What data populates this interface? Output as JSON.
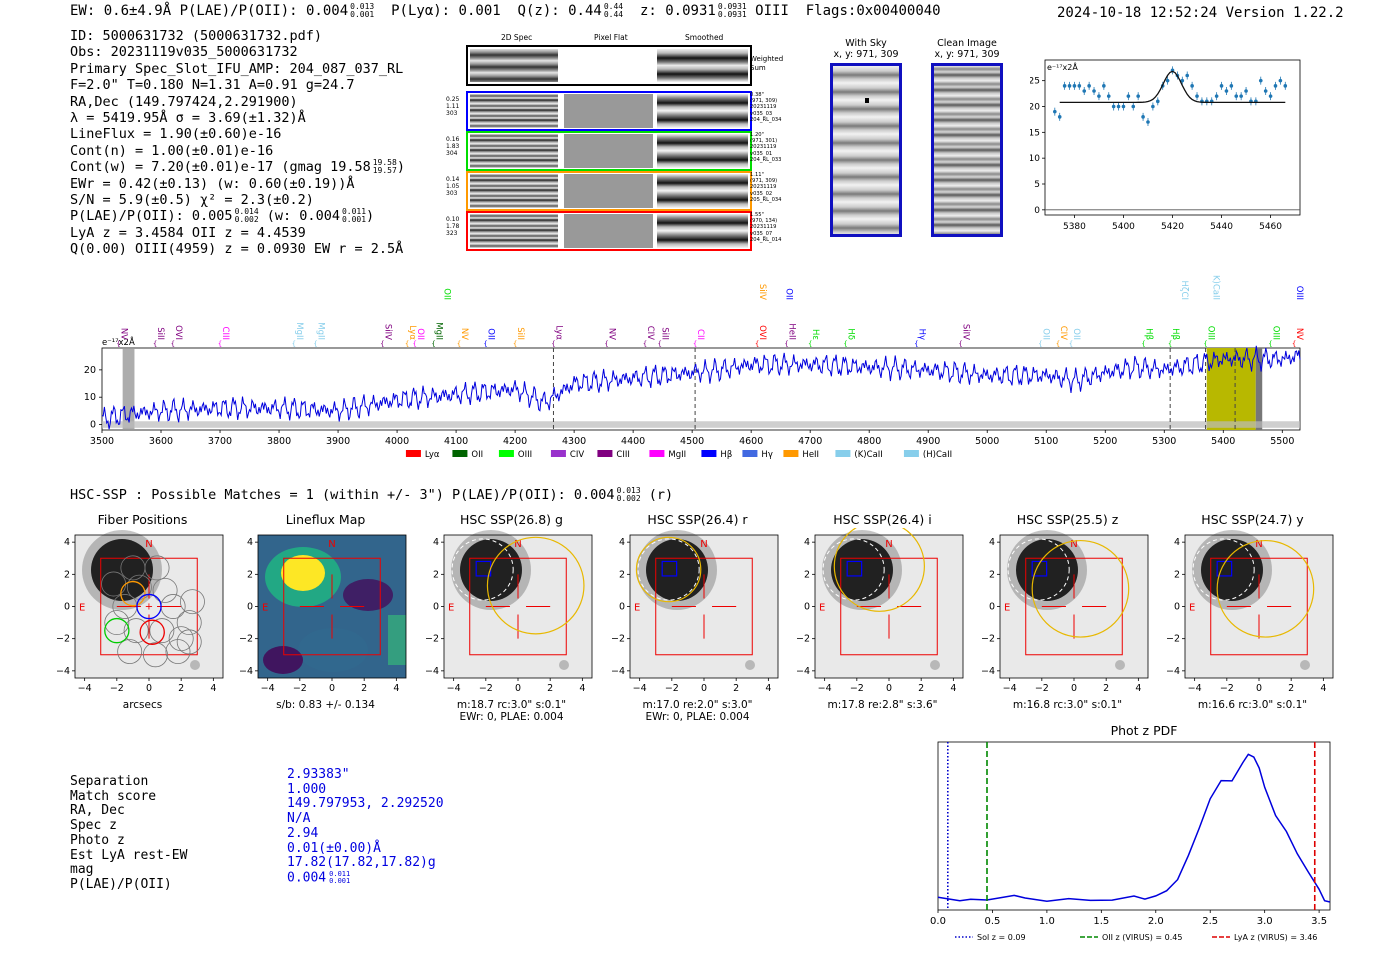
{
  "header": {
    "left": "EW: 0.6±4.9Å  P(LAE)/P(OII): 0.004",
    "plae_sup": "0.013",
    "plae_sub": "0.001",
    "plya": "P(Lyα): 0.001",
    "qz": "Q(z): 0.44",
    "qz_sup": "0.44",
    "qz_sub": "0.44",
    "z": "z: 0.0931",
    "z_sup": "0.0931",
    "z_sub": "0.0931",
    "z_line": "OIII",
    "flags": "Flags:0x00400040",
    "datetime": "2024-10-18 12:52:24  Version 1.22.2"
  },
  "info": {
    "lines": [
      "ID: 5000631732 (5000631732.pdf)",
      "Obs: 20231119v035_5000631732",
      "Primary Spec_Slot_IFU_AMP: 204_087_037_RL",
      "F=2.0\"  T=0.180  N=1.31  A=0.91  g=24.7",
      "RA,Dec (149.797424,2.291900)",
      "λ = 5419.95Å  σ = 3.69(±1.32)Å",
      "LineFlux = 1.90(±0.60)e-16",
      "Cont(n) = 1.00(±0.01)e-16"
    ],
    "contw": "Cont(w) = 7.20(±0.01)e-17 (gmag 19.58",
    "contw_sup": "19.58",
    "contw_sub": "19.57",
    "ewr": "EWr = 0.42(±0.13) (w: 0.60(±0.19))Å",
    "sn": "S/N = 5.9(±0.5)  χ² = 2.3(±0.2)",
    "plae": "P(LAE)/P(OII): 0.005",
    "plae_sup": "0.014",
    "plae_sub": "0.002",
    "plae_w": "(w: 0.004",
    "plae_w_sup": "0.011",
    "plae_w_sub": "0.001",
    "lya": "LyA z = 3.4584  OII z = 4.4539",
    "q": "Q(0.00) OIII(4959) z = 0.0930  EW r = 2.5Å"
  },
  "fiber_panel": {
    "col_titles": [
      "2D Spec",
      "Pixel Flat",
      "Smoothed"
    ],
    "weighted_sum": "Weighted Sum",
    "rows": [
      {
        "left": [
          "0.25",
          "1.11",
          "303"
        ],
        "right": [
          "0.38\"",
          "(971, 309)",
          "20231119",
          "v035_03",
          "204_RL_034"
        ],
        "color": "#0000ff"
      },
      {
        "left": [
          "0.16",
          "1.83",
          "304"
        ],
        "right": [
          "1.20\"",
          "(971, 301)",
          "20231119",
          "v035_01",
          "204_RL_033"
        ],
        "color": "#00dd00"
      },
      {
        "left": [
          "0.14",
          "1.05",
          "303"
        ],
        "right": [
          "1.11\"",
          "(971, 309)",
          "20231119",
          "v035_02",
          "205_RL_034"
        ],
        "color": "#ff9900"
      },
      {
        "left": [
          "0.10",
          "1.78",
          "323"
        ],
        "right": [
          "1.55\"",
          "(970, 134)",
          "20231119",
          "v035_07",
          "204_RL_014"
        ],
        "color": "#ff0000"
      }
    ]
  },
  "sky_panels": [
    {
      "title": "With Sky",
      "coords": "x, y: 971, 309"
    },
    {
      "title": "Clean Image",
      "coords": "x, y: 971, 309"
    }
  ],
  "zoom_chart": {
    "ylabel": "e⁻¹⁷x2Å",
    "x_ticks": [
      "5380",
      "5400",
      "5420",
      "5440",
      "5460"
    ],
    "y_ticks": [
      "0",
      "5",
      "10",
      "15",
      "20",
      "25"
    ]
  },
  "chart_data": [
    {
      "type": "scatter",
      "title": "",
      "ylabel": "e-17 x2Å",
      "xlim": [
        5368,
        5472
      ],
      "ylim": [
        -1,
        29
      ],
      "x": [
        5372,
        5374,
        5376,
        5378,
        5380,
        5382,
        5384,
        5386,
        5388,
        5390,
        5392,
        5394,
        5396,
        5398,
        5400,
        5402,
        5404,
        5406,
        5408,
        5410,
        5412,
        5414,
        5416,
        5418,
        5420,
        5422,
        5424,
        5426,
        5428,
        5430,
        5432,
        5434,
        5436,
        5438,
        5440,
        5442,
        5444,
        5446,
        5448,
        5450,
        5452,
        5454,
        5456,
        5458,
        5460,
        5462,
        5464,
        5466
      ],
      "values": [
        19,
        18,
        24,
        24,
        24,
        24,
        23,
        24,
        23,
        22,
        24,
        22,
        20,
        20,
        20,
        22,
        20,
        22,
        18,
        17,
        20,
        21,
        24,
        25,
        27,
        26,
        25,
        26,
        24,
        22,
        21,
        21,
        21,
        22,
        24,
        23,
        24,
        22,
        22,
        23,
        21,
        21,
        25,
        23,
        22,
        24,
        25,
        24
      ],
      "fit": {
        "amplitude": 6,
        "center": 5419.95,
        "sigma": 3.69,
        "continuum": 20.8
      }
    },
    {
      "type": "line",
      "ylabel": "e-17 x2Å",
      "xlim": [
        3500,
        5530
      ],
      "ylim": [
        -2,
        28
      ],
      "x_ticks": [
        3500,
        3600,
        3700,
        3800,
        3900,
        4000,
        4100,
        4200,
        4300,
        4400,
        4500,
        4600,
        4700,
        4800,
        4900,
        5000,
        5100,
        5200,
        5300,
        5400,
        5500
      ],
      "y_ticks": [
        0,
        10,
        20
      ],
      "anchors_x": [
        3500,
        3550,
        3600,
        3700,
        3800,
        3900,
        4000,
        4100,
        4200,
        4250,
        4300,
        4400,
        4500,
        4550,
        4600,
        4700,
        4800,
        4900,
        5000,
        5100,
        5150,
        5200,
        5250,
        5300,
        5350,
        5400,
        5450,
        5500,
        5530
      ],
      "anchors_y": [
        2,
        4,
        5,
        6,
        6,
        5,
        9,
        11,
        13,
        8,
        15,
        17,
        19,
        20,
        22,
        22,
        21,
        20,
        18,
        18,
        16,
        19,
        21,
        20,
        22,
        24,
        24,
        24,
        25
      ],
      "dashed_lines_x": [
        4265,
        4505,
        5310,
        5370,
        5420
      ],
      "emission_lines": [
        {
          "name": "NV",
          "x": 3528,
          "color": "#800080"
        },
        {
          "name": "SiII",
          "x": 3590,
          "color": "#800080"
        },
        {
          "name": "OVI",
          "x": 3620,
          "color": "#800080"
        },
        {
          "name": "CIII",
          "x": 3700,
          "color": "#ff00ff"
        },
        {
          "name": "MgII",
          "x": 3825,
          "color": "#87ceeb"
        },
        {
          "name": "MgII",
          "x": 3862,
          "color": "#87ceeb"
        },
        {
          "name": "SiIV",
          "x": 3975,
          "color": "#800080"
        },
        {
          "name": "Lyα",
          "x": 4017,
          "color": "#ff9900"
        },
        {
          "name": "OII",
          "x": 4030,
          "color": "#ff00ff"
        },
        {
          "name": "MgII",
          "x": 4062,
          "color": "#006400"
        },
        {
          "name": "NV",
          "x": 4105,
          "color": "#ff9900"
        },
        {
          "name": "OII",
          "x": 4150,
          "color": "#0000ff"
        },
        {
          "name": "SiII",
          "x": 4200,
          "color": "#ff9900"
        },
        {
          "name": "Lyα",
          "x": 4265,
          "color": "#800080"
        },
        {
          "name": "NV",
          "x": 4355,
          "color": "#800080"
        },
        {
          "name": "CIV",
          "x": 4420,
          "color": "#800080"
        },
        {
          "name": "SiII",
          "x": 4445,
          "color": "#800080"
        },
        {
          "name": "CII",
          "x": 4505,
          "color": "#ff00ff"
        },
        {
          "name": "OVI",
          "x": 4610,
          "color": "#ff0000"
        },
        {
          "name": "HeII",
          "x": 4660,
          "color": "#800080"
        },
        {
          "name": "Hε",
          "x": 4700,
          "color": "#00dd00"
        },
        {
          "name": "Hδ",
          "x": 4760,
          "color": "#00dd00"
        },
        {
          "name": "Hγ",
          "x": 4880,
          "color": "#0000ff"
        },
        {
          "name": "SiIV",
          "x": 4955,
          "color": "#800080"
        },
        {
          "name": "OII",
          "x": 5090,
          "color": "#87ceeb"
        },
        {
          "name": "CIV",
          "x": 5120,
          "color": "#ff9900"
        },
        {
          "name": "OII",
          "x": 5142,
          "color": "#87ceeb"
        },
        {
          "name": "Hβ",
          "x": 5265,
          "color": "#00dd00"
        },
        {
          "name": "Hβ",
          "x": 5310,
          "color": "#00dd00"
        },
        {
          "name": "OIII",
          "x": 5370,
          "color": "#00dd00"
        },
        {
          "name": "OIII",
          "x": 5480,
          "color": "#00dd00"
        },
        {
          "name": "NV",
          "x": 5520,
          "color": "#ff0000"
        }
      ],
      "upper_lines": [
        {
          "name": "OII",
          "x": 4075,
          "color": "#00dd00"
        },
        {
          "name": "SiIV",
          "x": 4610,
          "color": "#ff9900"
        },
        {
          "name": "OII",
          "x": 4655,
          "color": "#0000ff"
        },
        {
          "name": "HζCI",
          "x": 5325,
          "color": "#87ceeb"
        },
        {
          "name": "(K)CaII",
          "x": 5378,
          "color": "#87ceeb"
        },
        {
          "name": "OIII",
          "x": 5520,
          "color": "#0000ff"
        }
      ],
      "legend": [
        "Lyα",
        "OII",
        "OIII",
        "CIV",
        "CIII",
        "MgII",
        "Hβ",
        "Hγ",
        "HeII",
        "(K)CaII",
        "(H)CaII"
      ],
      "legend_colors": [
        "#ff0000",
        "#006400",
        "#00ff00",
        "#9932cc",
        "#800080",
        "#ff00ff",
        "#0000ff",
        "#4169e1",
        "#ff9900",
        "#87ceeb",
        "#87ceeb"
      ]
    },
    {
      "type": "line",
      "title": "Phot z PDF",
      "xlim": [
        0.0,
        3.6
      ],
      "ylim": [
        0,
        1
      ],
      "x_ticks": [
        "0.0",
        "0.5",
        "1.0",
        "1.5",
        "2.0",
        "2.5",
        "3.0",
        "3.5"
      ],
      "x": [
        0.0,
        0.1,
        0.2,
        0.3,
        0.45,
        0.6,
        0.7,
        0.8,
        1.0,
        1.2,
        1.4,
        1.6,
        1.8,
        1.9,
        2.0,
        2.1,
        2.2,
        2.3,
        2.4,
        2.5,
        2.6,
        2.7,
        2.8,
        2.85,
        2.9,
        2.95,
        3.0,
        3.1,
        3.2,
        3.3,
        3.4,
        3.5,
        3.55,
        3.6
      ],
      "values": [
        0.08,
        0.06,
        0.07,
        0.06,
        0.06,
        0.09,
        0.08,
        0.08,
        0.06,
        0.06,
        0.07,
        0.06,
        0.08,
        0.08,
        0.08,
        0.12,
        0.2,
        0.33,
        0.52,
        0.7,
        0.8,
        0.82,
        0.92,
        0.97,
        0.97,
        0.88,
        0.77,
        0.6,
        0.48,
        0.36,
        0.24,
        0.12,
        0.07,
        0.05
      ],
      "markers": [
        {
          "label": "Sol z = 0.09",
          "x": 0.09,
          "style": "dotted",
          "color": "#0000cc"
        },
        {
          "label": "OII z (VIRUS) = 0.45",
          "x": 0.45,
          "style": "dashed",
          "color": "#008800"
        },
        {
          "label": "LyA z (VIRUS) = 3.46",
          "x": 3.46,
          "style": "dashed",
          "color": "#dd0000"
        }
      ]
    }
  ],
  "hsc": {
    "heading": "HSC-SSP : Possible Matches = 1 (within +/- 3\")  P(LAE)/P(OII): 0.004",
    "heading_sup": "0.013",
    "heading_sub": "0.002",
    "heading_tail": "(r)",
    "axis_ticks_x": [
      "−4",
      "−2",
      "0",
      "2",
      "4"
    ],
    "axis_ticks_y": [
      "4",
      "2",
      "0",
      "−2",
      "−4"
    ],
    "compass_n": "N",
    "compass_e": "E",
    "panels": [
      {
        "title": "Fiber Positions",
        "cap1": "arcsecs",
        "cap2": ""
      },
      {
        "title": "Lineflux Map",
        "cap1": "s/b: 0.83 +/- 0.134",
        "cap2": ""
      },
      {
        "title": "HSC SSP(26.8) g",
        "cap1": "m:18.7 rc:3.0\"  s:0.1\"",
        "cap2": "EWr: 0, PLAE: 0.004"
      },
      {
        "title": "HSC SSP(26.4) r",
        "cap1": "m:17.0  re:2.0\"  s:3.0\"",
        "cap2": "EWr: 0, PLAE: 0.004"
      },
      {
        "title": "HSC SSP(26.4) i",
        "cap1": "m:17.8  re:2.8\"  s:3.6\"",
        "cap2": ""
      },
      {
        "title": "HSC SSP(25.5) z",
        "cap1": "m:16.8 rc:3.0\"  s:0.1\"",
        "cap2": ""
      },
      {
        "title": "HSC SSP(24.7) y",
        "cap1": "m:16.6 rc:3.0\"  s:0.1\"",
        "cap2": ""
      }
    ]
  },
  "match": {
    "labels": [
      "Separation",
      "Match score",
      "RA, Dec",
      "Spec z",
      "Photo z",
      "Est LyA rest-EW",
      "mag",
      "P(LAE)/P(OII)"
    ],
    "values": [
      "2.93383\"",
      "1.000",
      "149.797953, 2.292520",
      "N/A",
      "2.94",
      "0.01(±0.00)Å",
      "17.82(17.82,17.82)g",
      "0.004"
    ],
    "plae_sup": "0.011",
    "plae_sub": "0.001"
  }
}
